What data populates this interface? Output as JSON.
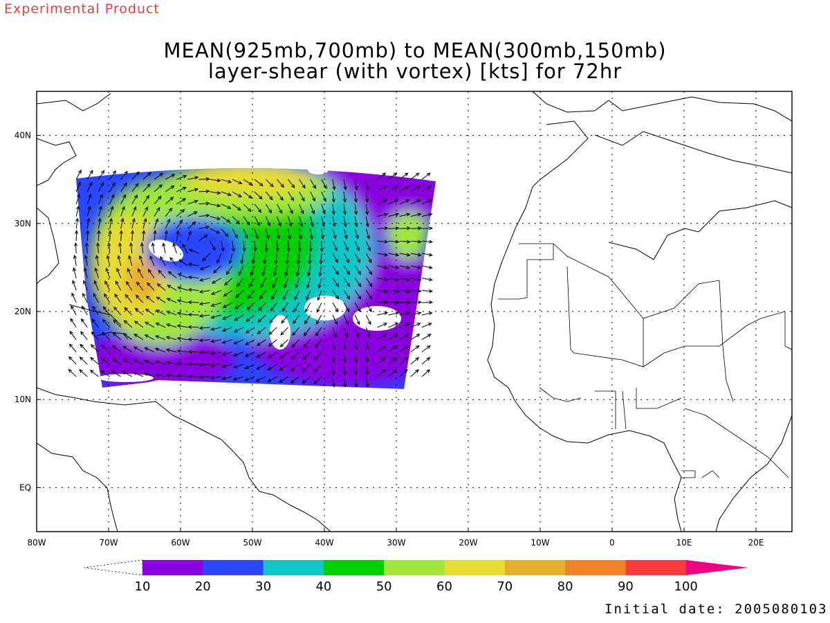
{
  "header": {
    "product_label": "Experimental Product",
    "title_line1": "MEAN(925mb,700mb) to MEAN(300mb,150mb)",
    "title_line2": "layer-shear (with vortex) [kts] for 72hr"
  },
  "map": {
    "lon_range": [
      -80,
      25
    ],
    "lat_range": [
      -5,
      45
    ],
    "lon_ticks": [
      {
        "value": -80,
        "label": "80W"
      },
      {
        "value": -70,
        "label": "70W"
      },
      {
        "value": -60,
        "label": "60W"
      },
      {
        "value": -50,
        "label": "50W"
      },
      {
        "value": -40,
        "label": "40W"
      },
      {
        "value": -30,
        "label": "30W"
      },
      {
        "value": -20,
        "label": "20W"
      },
      {
        "value": -10,
        "label": "10W"
      },
      {
        "value": 0,
        "label": "0"
      },
      {
        "value": 10,
        "label": "10E"
      },
      {
        "value": 20,
        "label": "20E"
      }
    ],
    "lat_ticks": [
      {
        "value": 0,
        "label": "EQ"
      },
      {
        "value": 10,
        "label": "10N"
      },
      {
        "value": 20,
        "label": "20N"
      },
      {
        "value": 30,
        "label": "30N"
      },
      {
        "value": 40,
        "label": "40N"
      }
    ],
    "grid": "dotted",
    "data_domain": {
      "lon": [
        -75,
        -25
      ],
      "lat": [
        12,
        35
      ]
    }
  },
  "colorbar": {
    "labels": [
      "10",
      "20",
      "30",
      "40",
      "50",
      "60",
      "70",
      "80",
      "90",
      "100"
    ],
    "colors": [
      "#8a00e0",
      "#2a46ff",
      "#10c8c8",
      "#00d000",
      "#a0e63c",
      "#e6dc32",
      "#e6af2d",
      "#f08228",
      "#fa3c3c",
      "#f00082"
    ],
    "below_min_color": "#ffffff",
    "units": "kts"
  },
  "footer": {
    "initial_date": "Initial date: 2005080103"
  }
}
